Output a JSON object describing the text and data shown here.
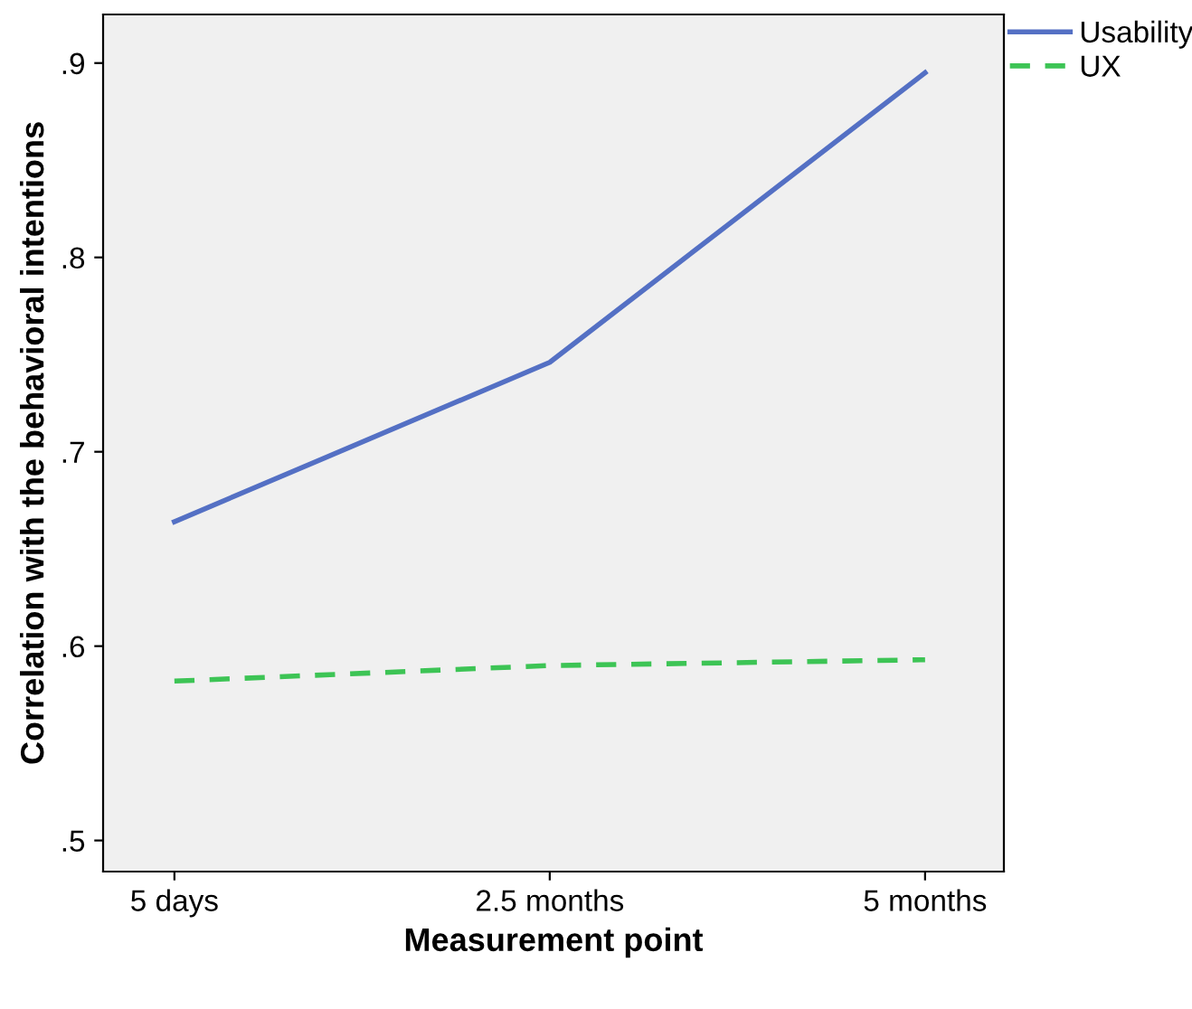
{
  "chart_data": {
    "type": "line",
    "xlabel": "Measurement point",
    "ylabel": "Correlation with the behavioral intentions",
    "categories": [
      "5 days",
      "2.5 months",
      "5 months"
    ],
    "series": [
      {
        "name": "Usability",
        "color": "#5470c4",
        "values": [
          0.664,
          0.746,
          0.895
        ],
        "line_style": "solid"
      },
      {
        "name": "UX",
        "color": "#3dc455",
        "values": [
          0.582,
          0.59,
          0.593
        ],
        "line_style": "dashed"
      }
    ],
    "ylim": [
      0.484,
      0.925
    ],
    "yticks": [
      {
        "value": 0.5,
        "label": ".5"
      },
      {
        "value": 0.6,
        "label": ".6"
      },
      {
        "value": 0.7,
        "label": ".7"
      },
      {
        "value": 0.8,
        "label": ".8"
      },
      {
        "value": 0.9,
        "label": ".9"
      }
    ],
    "grid": false,
    "legend": "top right",
    "marker": "none"
  }
}
